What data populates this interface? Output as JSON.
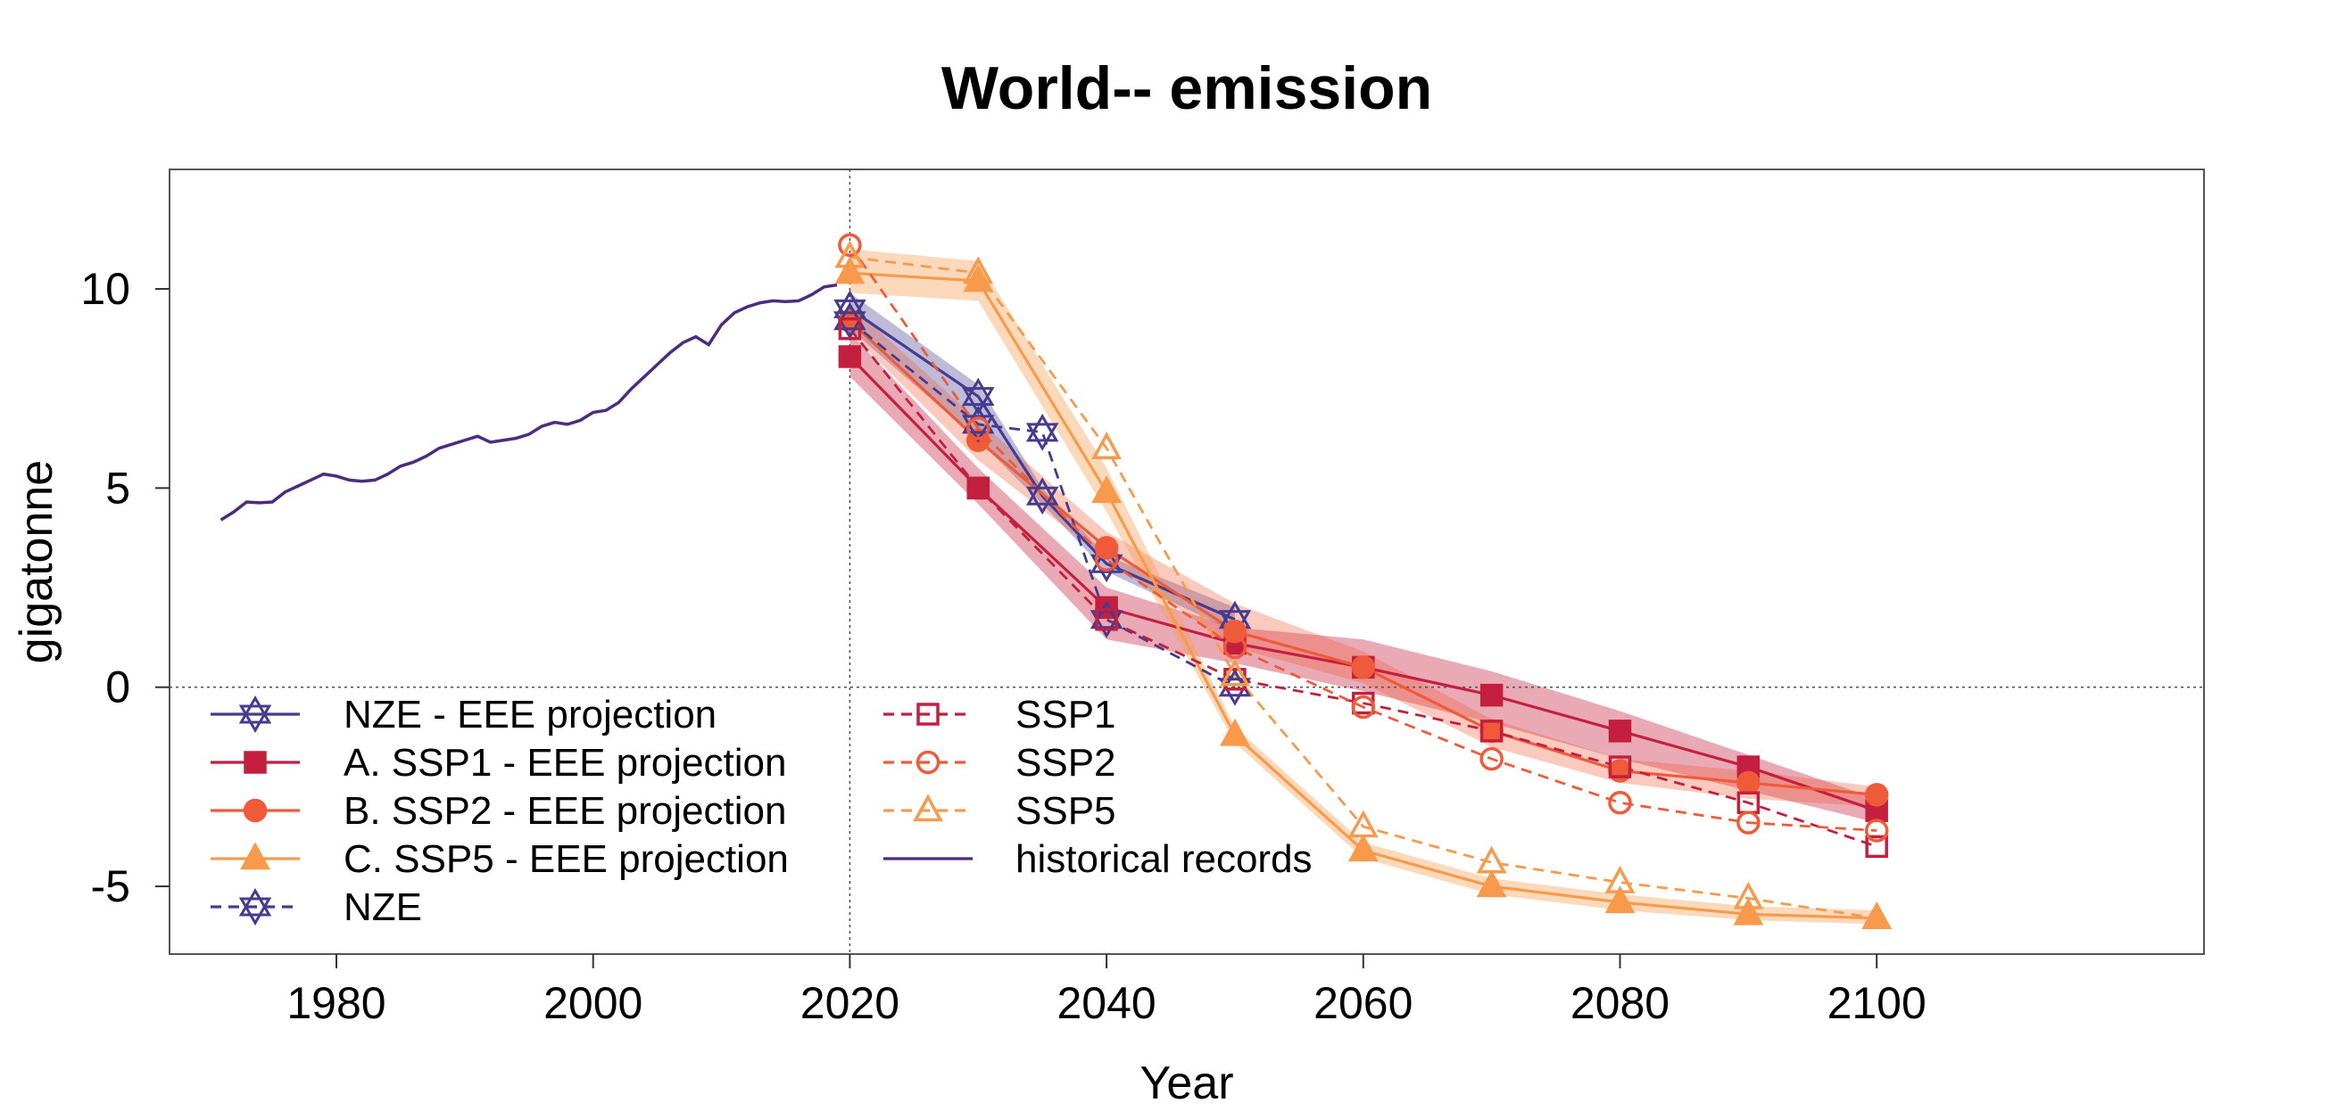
{
  "chart_data": {
    "type": "line",
    "title": "World-- emission",
    "xlabel": "Year",
    "ylabel": "gigatonne",
    "xlim": [
      1967,
      2125.5
    ],
    "ylim": [
      -6.7,
      13.0
    ],
    "xticks": [
      1980,
      2000,
      2020,
      2040,
      2060,
      2080,
      2100
    ],
    "yticks": [
      -5,
      0,
      5,
      10
    ],
    "ytick_labels": [
      "-5",
      "0",
      "5",
      "10"
    ],
    "vline_x": 2020,
    "hline_y": 0,
    "legend_position": "bottom-left",
    "colors": {
      "nze": "#463B8F",
      "ssp1": "#C41F3E",
      "ssp2": "#EF5B39",
      "ssp5": "#F79A4C",
      "historical": "#4B2C7F"
    },
    "historical": {
      "name": "historical records",
      "x": [
        1971,
        1972,
        1973,
        1974,
        1975,
        1976,
        1977,
        1978,
        1979,
        1980,
        1981,
        1982,
        1983,
        1984,
        1985,
        1986,
        1987,
        1988,
        1989,
        1990,
        1991,
        1992,
        1993,
        1994,
        1995,
        1996,
        1997,
        1998,
        1999,
        2000,
        2001,
        2002,
        2003,
        2004,
        2005,
        2006,
        2007,
        2008,
        2009,
        2010,
        2011,
        2012,
        2013,
        2014,
        2015,
        2016,
        2017,
        2018,
        2019
      ],
      "y": [
        4.2,
        4.4,
        4.65,
        4.63,
        4.65,
        4.9,
        5.05,
        5.2,
        5.35,
        5.3,
        5.2,
        5.17,
        5.2,
        5.35,
        5.55,
        5.65,
        5.8,
        6.0,
        6.1,
        6.2,
        6.3,
        6.15,
        6.2,
        6.25,
        6.35,
        6.55,
        6.65,
        6.6,
        6.7,
        6.9,
        6.95,
        7.15,
        7.5,
        7.8,
        8.1,
        8.4,
        8.65,
        8.8,
        8.6,
        9.1,
        9.4,
        9.55,
        9.65,
        9.7,
        9.68,
        9.7,
        9.85,
        10.05,
        10.1
      ]
    },
    "series": [
      {
        "name": "NZE - EEE projection",
        "key": "nze",
        "marker": "star",
        "filled": false,
        "dashed": false,
        "x": [
          2020,
          2030,
          2035,
          2040,
          2050
        ],
        "y": [
          9.5,
          7.3,
          4.8,
          3.1,
          1.7
        ],
        "band_lo": [
          9.0,
          6.2,
          4.6,
          2.9,
          1.4
        ],
        "band_hi": [
          9.9,
          7.6,
          5.0,
          3.3,
          2.0
        ]
      },
      {
        "name": "A. SSP1 - EEE projection",
        "key": "ssp1",
        "marker": "square",
        "filled": true,
        "dashed": false,
        "x": [
          2020,
          2030,
          2040,
          2050,
          2060,
          2070,
          2080,
          2090,
          2100
        ],
        "y": [
          8.3,
          5.0,
          2.0,
          1.1,
          0.5,
          -0.2,
          -1.1,
          -2.0,
          -3.1
        ],
        "band_lo": [
          7.8,
          4.6,
          1.2,
          0.6,
          -0.1,
          -0.9,
          -1.8,
          -2.6,
          -3.4
        ],
        "band_hi": [
          8.9,
          5.5,
          2.5,
          1.5,
          1.2,
          0.4,
          -0.6,
          -1.7,
          -2.8
        ]
      },
      {
        "name": "B. SSP2 - EEE projection",
        "key": "ssp2",
        "marker": "circle",
        "filled": true,
        "dashed": false,
        "x": [
          2020,
          2030,
          2040,
          2050,
          2060,
          2070,
          2080,
          2090,
          2100
        ],
        "y": [
          9.2,
          6.2,
          3.5,
          1.4,
          0.5,
          -1.1,
          -2.1,
          -2.4,
          -2.7
        ],
        "band_lo": [
          8.9,
          5.7,
          3.2,
          1.0,
          0.1,
          -1.5,
          -2.4,
          -2.8,
          -3.0
        ],
        "band_hi": [
          9.6,
          6.7,
          3.9,
          2.1,
          0.9,
          -0.8,
          -1.8,
          -2.1,
          -2.5
        ]
      },
      {
        "name": "C. SSP5 - EEE projection",
        "key": "ssp5",
        "marker": "triangle",
        "filled": true,
        "dashed": false,
        "x": [
          2020,
          2030,
          2040,
          2050,
          2060,
          2070,
          2080,
          2090,
          2100
        ],
        "y": [
          10.4,
          10.2,
          4.9,
          -1.2,
          -4.1,
          -5.0,
          -5.4,
          -5.7,
          -5.8
        ],
        "band_lo": [
          9.9,
          9.7,
          4.4,
          -1.4,
          -4.3,
          -5.2,
          -5.6,
          -5.85,
          -5.95
        ],
        "band_hi": [
          11.0,
          10.7,
          5.5,
          -1.0,
          -3.9,
          -4.8,
          -5.2,
          -5.5,
          -5.6
        ]
      },
      {
        "name": "NZE",
        "key": "nze",
        "marker": "star",
        "filled": false,
        "dashed": true,
        "x": [
          2020,
          2030,
          2035,
          2040,
          2050
        ],
        "y": [
          9.2,
          6.6,
          6.4,
          1.7,
          0.0
        ]
      },
      {
        "name": "SSP1",
        "key": "ssp1",
        "marker": "square",
        "filled": false,
        "dashed": true,
        "x": [
          2020,
          2030,
          2040,
          2050,
          2060,
          2070,
          2080,
          2090,
          2100
        ],
        "y": [
          9.0,
          5.0,
          1.7,
          0.2,
          -0.4,
          -1.1,
          -2.0,
          -2.9,
          -4.0
        ]
      },
      {
        "name": "SSP2",
        "key": "ssp2",
        "marker": "circle",
        "filled": false,
        "dashed": true,
        "x": [
          2020,
          2030,
          2040,
          2050,
          2060,
          2070,
          2080,
          2090,
          2100
        ],
        "y": [
          11.1,
          6.5,
          3.2,
          1.0,
          -0.5,
          -1.8,
          -2.9,
          -3.4,
          -3.6
        ]
      },
      {
        "name": "SSP5",
        "key": "ssp5",
        "marker": "triangle",
        "filled": false,
        "dashed": true,
        "x": [
          2020,
          2030,
          2040,
          2050,
          2060,
          2070,
          2080,
          2090,
          2100
        ],
        "y": [
          10.8,
          10.4,
          6.0,
          0.3,
          -3.5,
          -4.4,
          -4.9,
          -5.3,
          -5.8
        ]
      }
    ],
    "legend": [
      {
        "label": "NZE - EEE projection",
        "key": "nze",
        "marker": "star",
        "filled": false,
        "dashed": false
      },
      {
        "label": "A. SSP1 - EEE projection",
        "key": "ssp1",
        "marker": "square",
        "filled": true,
        "dashed": false
      },
      {
        "label": "B. SSP2 - EEE projection",
        "key": "ssp2",
        "marker": "circle",
        "filled": true,
        "dashed": false
      },
      {
        "label": "C. SSP5 - EEE projection",
        "key": "ssp5",
        "marker": "triangle",
        "filled": true,
        "dashed": false
      },
      {
        "label": "NZE",
        "key": "nze",
        "marker": "star",
        "filled": false,
        "dashed": true
      },
      {
        "label": "SSP1",
        "key": "ssp1",
        "marker": "square",
        "filled": false,
        "dashed": true
      },
      {
        "label": "SSP2",
        "key": "ssp2",
        "marker": "circle",
        "filled": false,
        "dashed": true
      },
      {
        "label": "SSP5",
        "key": "ssp5",
        "marker": "triangle",
        "filled": false,
        "dashed": true
      },
      {
        "label": "historical records",
        "key": "historical",
        "marker": "none",
        "filled": false,
        "dashed": false
      }
    ]
  }
}
